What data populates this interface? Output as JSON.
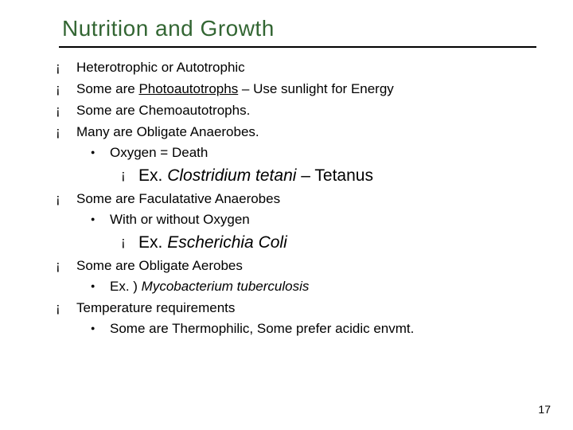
{
  "title_color": "#336633",
  "title": "Nutrition and Growth",
  "b1": "Heterotrophic or Autotrophic",
  "b2a": "Some are ",
  "b2b": "Photoautotrophs",
  "b2c": " – Use sunlight for Energy",
  "b3": "Some are Chemoautotrophs.",
  "b4": "Many are Obligate Anaerobes.",
  "b4_1": "Oxygen = Death",
  "b4_1_1a": "Ex. ",
  "b4_1_1b": "Clostridium tetani",
  "b4_1_1c": " – Tetanus",
  "b5": "Some are Faculatative Anaerobes",
  "b5_1": "With or without Oxygen",
  "b5_1_1a": "Ex. ",
  "b5_1_1b": "Escherichia Coli",
  "b6": "Some are Obligate Aerobes",
  "b6_1a": "Ex. ) ",
  "b6_1b": "Mycobacterium tuberculosis",
  "b7": "Temperature requirements",
  "b7_1": "Some are Thermophilic, Some prefer acidic envmt.",
  "page": "17"
}
